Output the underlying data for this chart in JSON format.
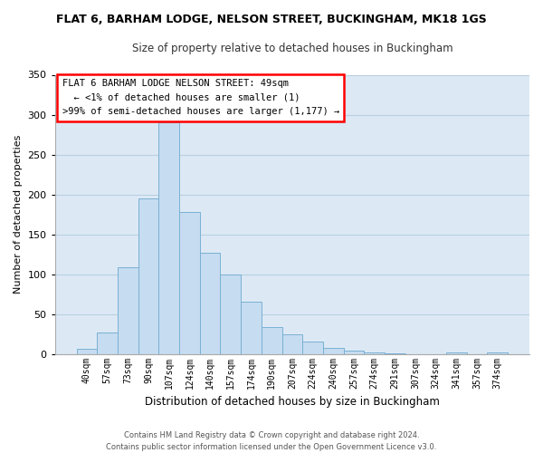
{
  "title": "FLAT 6, BARHAM LODGE, NELSON STREET, BUCKINGHAM, MK18 1GS",
  "subtitle": "Size of property relative to detached houses in Buckingham",
  "xlabel": "Distribution of detached houses by size in Buckingham",
  "ylabel": "Number of detached properties",
  "bar_labels": [
    "40sqm",
    "57sqm",
    "73sqm",
    "90sqm",
    "107sqm",
    "124sqm",
    "140sqm",
    "157sqm",
    "174sqm",
    "190sqm",
    "207sqm",
    "224sqm",
    "240sqm",
    "257sqm",
    "274sqm",
    "291sqm",
    "307sqm",
    "324sqm",
    "341sqm",
    "357sqm",
    "374sqm"
  ],
  "bar_values": [
    6,
    27,
    109,
    195,
    290,
    178,
    127,
    99,
    66,
    34,
    25,
    15,
    8,
    4,
    2,
    1,
    0,
    0,
    2,
    0,
    2
  ],
  "bar_color": "#c6dcf0",
  "bar_edge_color": "#7ab0d4",
  "plot_bg_color": "#dce9f5",
  "ylim": [
    0,
    350
  ],
  "yticks": [
    0,
    50,
    100,
    150,
    200,
    250,
    300,
    350
  ],
  "annotation_lines": [
    "FLAT 6 BARHAM LODGE NELSON STREET: 49sqm",
    "  ← <1% of detached houses are smaller (1)",
    ">99% of semi-detached houses are larger (1,177) →"
  ],
  "footer1": "Contains HM Land Registry data © Crown copyright and database right 2024.",
  "footer2": "Contains public sector information licensed under the Open Government Licence v3.0.",
  "background_color": "#ffffff",
  "grid_color": "#b8cfe0"
}
